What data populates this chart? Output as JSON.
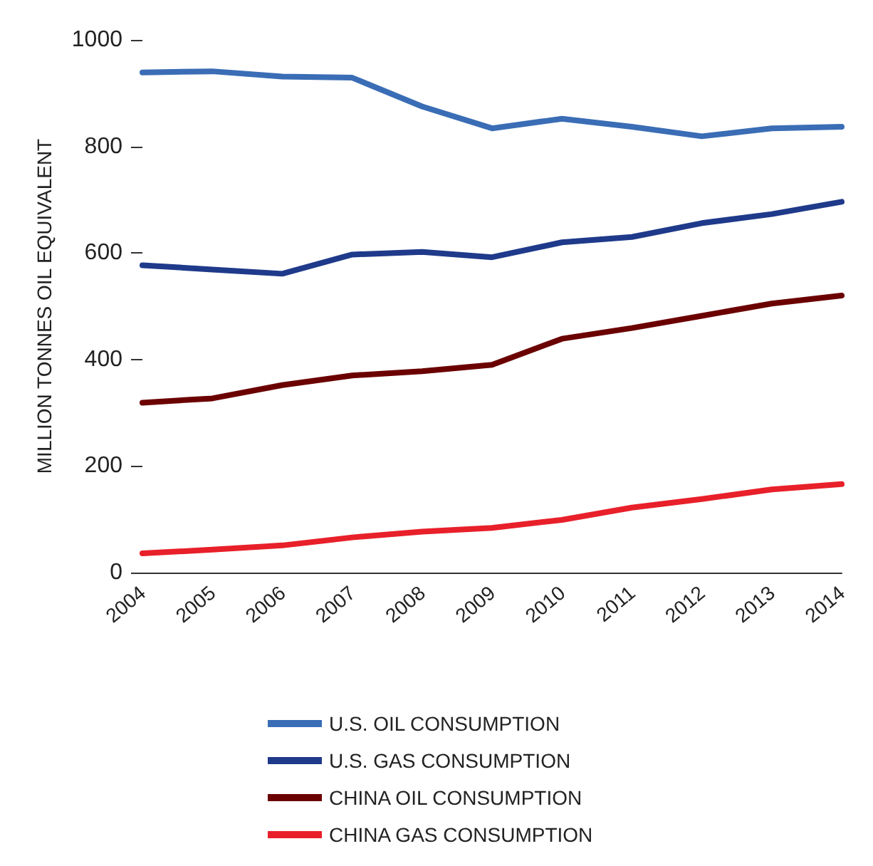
{
  "chart_data": {
    "type": "line",
    "ylabel": "MILLION TONNES OIL EQUIVALENT",
    "categories": [
      "2004",
      "2005",
      "2006",
      "2007",
      "2008",
      "2009",
      "2010",
      "2011",
      "2012",
      "2013",
      "2014"
    ],
    "ylim": [
      0,
      1000
    ],
    "yticks": [
      0,
      200,
      400,
      600,
      800,
      1000
    ],
    "grid": false,
    "legend": "bottom",
    "marker": "none",
    "line_style": "solid",
    "series": [
      {
        "name": "U.S. OIL CONSUMPTION",
        "color": "#3a6db5",
        "values": [
          939,
          941,
          931,
          929,
          875,
          834,
          852,
          837,
          819,
          834,
          837
        ]
      },
      {
        "name": "U.S. GAS CONSUMPTION",
        "color": "#1f3a8a",
        "values": [
          577,
          569,
          561,
          597,
          602,
          592,
          620,
          630,
          656,
          673,
          696
        ]
      },
      {
        "name": "CHINA OIL CONSUMPTION",
        "color": "#6b0000",
        "values": [
          319,
          327,
          352,
          370,
          378,
          390,
          439,
          459,
          482,
          505,
          520
        ]
      },
      {
        "name": "CHINA GAS CONSUMPTION",
        "color": "#e8202a",
        "values": [
          36,
          43,
          51,
          66,
          77,
          84,
          99,
          122,
          138,
          156,
          166
        ]
      }
    ]
  }
}
